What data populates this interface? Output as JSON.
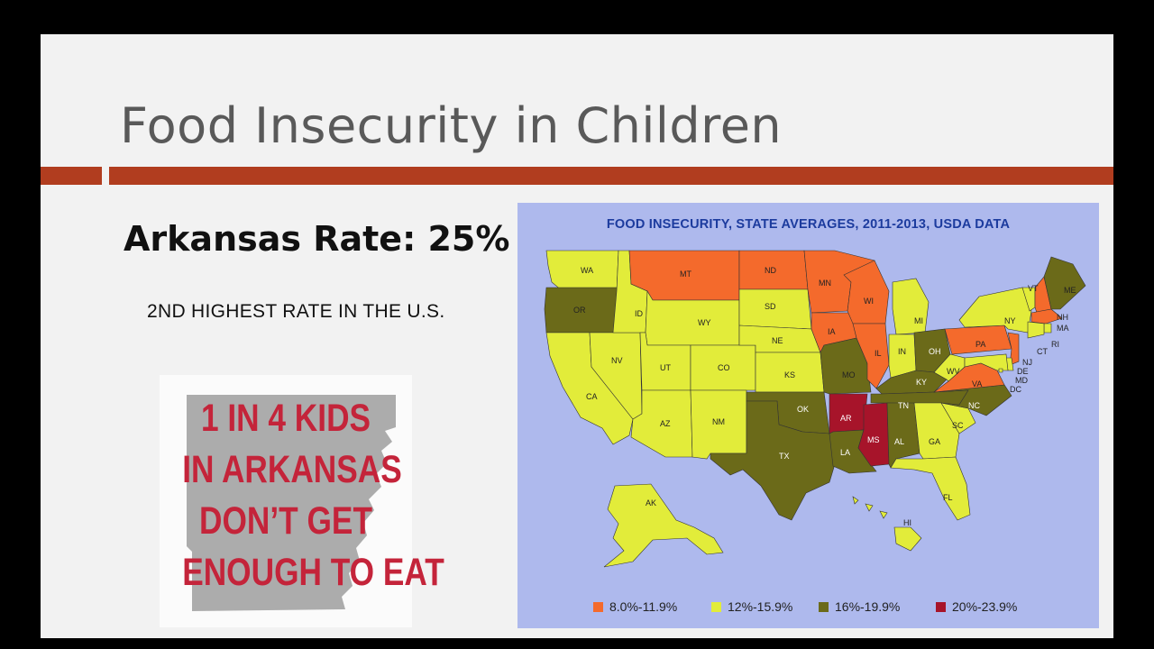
{
  "slide": {
    "title": "Food Insecurity in Children",
    "rate_heading": "Arkansas Rate: 25%",
    "rate_subtext": "2ND HIGHEST RATE IN THE U.S."
  },
  "poster": {
    "lines": [
      "1 IN 4 KIDS",
      "IN ARKANSAS",
      "DON’T GET",
      "ENOUGH TO EAT"
    ]
  },
  "map": {
    "title": "FOOD INSECURITY, STATE AVERAGES, 2011-2013, USDA DATA",
    "colors": {
      "water": "#aeb9ed",
      "orange": "#f46a2c",
      "yellow": "#e2ec3a",
      "olive": "#6b6a19",
      "red": "#a7142a"
    },
    "legend": [
      {
        "label": "8.0%-11.9%",
        "color": "#f46a2c"
      },
      {
        "label": "12%-15.9%",
        "color": "#e2ec3a"
      },
      {
        "label": "16%-19.9%",
        "color": "#6b6a19"
      },
      {
        "label": "20%-23.9%",
        "color": "#a7142a"
      }
    ],
    "states": {
      "WA": "12%-15.9%",
      "OR": "16%-19.9%",
      "CA": "12%-15.9%",
      "NV": "12%-15.9%",
      "ID": "12%-15.9%",
      "MT": "8.0%-11.9%",
      "WY": "12%-15.9%",
      "UT": "12%-15.9%",
      "AZ": "12%-15.9%",
      "CO": "12%-15.9%",
      "NM": "12%-15.9%",
      "ND": "8.0%-11.9%",
      "SD": "12%-15.9%",
      "NE": "12%-15.9%",
      "KS": "12%-15.9%",
      "OK": "16%-19.9%",
      "TX": "16%-19.9%",
      "MN": "8.0%-11.9%",
      "IA": "8.0%-11.9%",
      "MO": "16%-19.9%",
      "AR": "20%-23.9%",
      "LA": "16%-19.9%",
      "WI": "8.0%-11.9%",
      "IL": "8.0%-11.9%",
      "MS": "20%-23.9%",
      "MI": "12%-15.9%",
      "IN": "12%-15.9%",
      "OH": "16%-19.9%",
      "KY": "16%-19.9%",
      "TN": "16%-19.9%",
      "AL": "16%-19.9%",
      "GA": "12%-15.9%",
      "FL": "12%-15.9%",
      "SC": "12%-15.9%",
      "NC": "16%-19.9%",
      "VA": "8.0%-11.9%",
      "WV": "12%-15.9%",
      "PA": "8.0%-11.9%",
      "NY": "12%-15.9%",
      "VT": "12%-15.9%",
      "ME": "16%-19.9%",
      "NH": "8.0%-11.9%",
      "MA": "8.0%-11.9%",
      "RI": "12%-15.9%",
      "CT": "12%-15.9%",
      "NJ": "8.0%-11.9%",
      "DE": "12%-15.9%",
      "MD": "12%-15.9%",
      "DC": "12%-15.9%",
      "AK": "12%-15.9%",
      "HI": "12%-15.9%"
    }
  }
}
